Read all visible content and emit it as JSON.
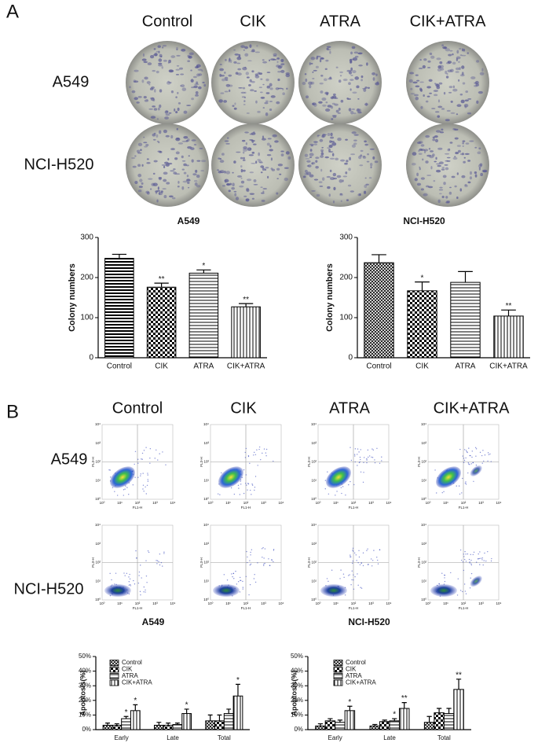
{
  "panel_a": {
    "label": "A",
    "columns": [
      "Control",
      "CIK",
      "ATRA",
      "CIK+ATRA"
    ],
    "rows": [
      "A549",
      "NCI-H520"
    ]
  },
  "panel_b": {
    "label": "B",
    "columns": [
      "Control",
      "CIK",
      "ATRA",
      "CIK+ATRA"
    ],
    "rows": [
      "A549",
      "NCI-H520"
    ]
  },
  "flow_axes": {
    "x_label": "FL1-H",
    "y_label": "FL3-H",
    "ticks": [
      "10⁰",
      "10¹",
      "10²",
      "10³",
      "10⁴"
    ]
  },
  "chart_data": [
    {
      "type": "bar",
      "title": "A549",
      "y_label": "Colony numbers",
      "categories": [
        "Control",
        "CIK",
        "ATRA",
        "CIK+ATRA"
      ],
      "values": [
        248,
        176,
        211,
        127
      ],
      "errors": [
        10,
        10,
        8,
        8
      ],
      "significance": [
        null,
        "**",
        "*",
        "**"
      ],
      "patterns": [
        "hstripe",
        "checker",
        "hlines",
        "vlines"
      ],
      "ylim": [
        0,
        300
      ],
      "yticks": [
        0,
        100,
        200,
        300
      ]
    },
    {
      "type": "bar",
      "title": "NCI-H520",
      "y_label": "Colony numbers",
      "categories": [
        "Control",
        "CIK",
        "ATRA",
        "CIK+ATRA"
      ],
      "values": [
        237,
        167,
        188,
        104
      ],
      "errors": [
        20,
        22,
        27,
        15
      ],
      "significance": [
        null,
        "*",
        null,
        "**"
      ],
      "patterns": [
        "crosshatch",
        "checker",
        "hlines",
        "vlines"
      ],
      "ylim": [
        0,
        300
      ],
      "yticks": [
        0,
        100,
        200,
        300
      ]
    },
    {
      "type": "bar",
      "title": "A549",
      "y_label": "Apoptosis(%)",
      "categories": [
        "Early",
        "Late",
        "Total"
      ],
      "series": [
        {
          "name": "Control",
          "pattern": "crosshatch",
          "values": [
            3,
            3,
            6
          ],
          "errors": [
            1.5,
            2,
            4
          ],
          "significance": [
            null,
            null,
            null
          ]
        },
        {
          "name": "CIK",
          "pattern": "checker",
          "values": [
            3,
            3,
            6
          ],
          "errors": [
            1,
            1.5,
            4
          ],
          "significance": [
            null,
            null,
            null
          ]
        },
        {
          "name": "ATRA",
          "pattern": "hlines",
          "values": [
            7.5,
            3.5,
            11
          ],
          "errors": [
            1.5,
            1,
            3
          ],
          "significance": [
            "*",
            null,
            null
          ]
        },
        {
          "name": "CIK+ATRA",
          "pattern": "vlines",
          "values": [
            13,
            11,
            23
          ],
          "errors": [
            4,
            3,
            8
          ],
          "significance": [
            "*",
            "*",
            "*"
          ]
        }
      ],
      "ylim": [
        0,
        50
      ],
      "yticks": [
        {
          "value": 0,
          "label": "0%"
        },
        {
          "value": 10,
          "label": "10%"
        },
        {
          "value": 20,
          "label": "20%"
        },
        {
          "value": 30,
          "label": "30%"
        },
        {
          "value": 40,
          "label": "40%"
        },
        {
          "value": 50,
          "label": "50%"
        }
      ]
    },
    {
      "type": "bar",
      "title": "NCI-H520",
      "y_label": "Apoptosis(%)",
      "categories": [
        "Early",
        "Late",
        "Total"
      ],
      "series": [
        {
          "name": "Control",
          "pattern": "crosshatch",
          "values": [
            2.5,
            2.5,
            5
          ],
          "errors": [
            1.5,
            1,
            4
          ],
          "significance": [
            null,
            null,
            null
          ]
        },
        {
          "name": "CIK",
          "pattern": "checker",
          "values": [
            6,
            5.5,
            11.5
          ],
          "errors": [
            1.5,
            1,
            3
          ],
          "significance": [
            null,
            null,
            null
          ]
        },
        {
          "name": "ATRA",
          "pattern": "hlines",
          "values": [
            5,
            6,
            11
          ],
          "errors": [
            1.5,
            1.5,
            3.5
          ],
          "significance": [
            null,
            "*",
            null
          ]
        },
        {
          "name": "CIK+ATRA",
          "pattern": "vlines",
          "values": [
            13,
            14.5,
            27.5
          ],
          "errors": [
            3,
            4,
            7
          ],
          "significance": [
            "*",
            "**",
            "**"
          ]
        }
      ],
      "ylim": [
        0,
        50
      ],
      "yticks": [
        {
          "value": 0,
          "label": "0%"
        },
        {
          "value": 10,
          "label": "10%"
        },
        {
          "value": 20,
          "label": "20%"
        },
        {
          "value": 30,
          "label": "30%"
        },
        {
          "value": 40,
          "label": "40%"
        },
        {
          "value": 50,
          "label": "50%"
        }
      ]
    }
  ]
}
